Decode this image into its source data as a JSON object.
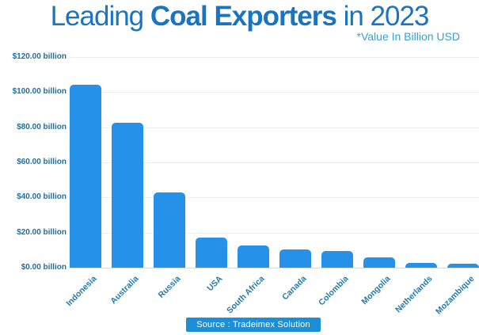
{
  "header": {
    "title_leading": "Leading ",
    "title_bold": "Coal Exporters",
    "title_trailing": " in 2023",
    "subtitle": "*Value In Billion USD"
  },
  "footer": {
    "source_label": "Source : Tradeimex Solution"
  },
  "colors": {
    "title": "#1b74c0",
    "subtitle": "#38a0d6",
    "bar": "#2691e9",
    "axis_labels": "#216f9f",
    "source_badge_bg": "#1d8ed8",
    "source_badge_text": "#ffffff",
    "gridline": "#ededed",
    "background": "#ffffff"
  },
  "chart_data": {
    "type": "bar",
    "title": "Leading Coal Exporters in 2023",
    "subtitle": "*Value In Billion USD",
    "categories": [
      "Indonesia",
      "Australia",
      "Russia",
      "USA",
      "South Africa",
      "Canada",
      "Colombia",
      "Mongolia",
      "Netherlands",
      "Mozambique"
    ],
    "values": [
      104,
      82.5,
      43,
      17,
      12.5,
      10.5,
      9.5,
      6,
      2.5,
      2.3
    ],
    "unit": "billion USD",
    "xlabel": "",
    "ylabel": "",
    "ylim": [
      0,
      120
    ],
    "ytick_step": 20,
    "ytick_labels": [
      "$0.00 billion",
      "$20.00 billion",
      "$40.00 billion",
      "$60.00 billion",
      "$80.00 billion",
      "$100.00 billion",
      "$120.00 billion"
    ],
    "grid": true,
    "legend": false,
    "bar_color": "#2691e9",
    "source": "Source : Tradeimex Solution"
  }
}
